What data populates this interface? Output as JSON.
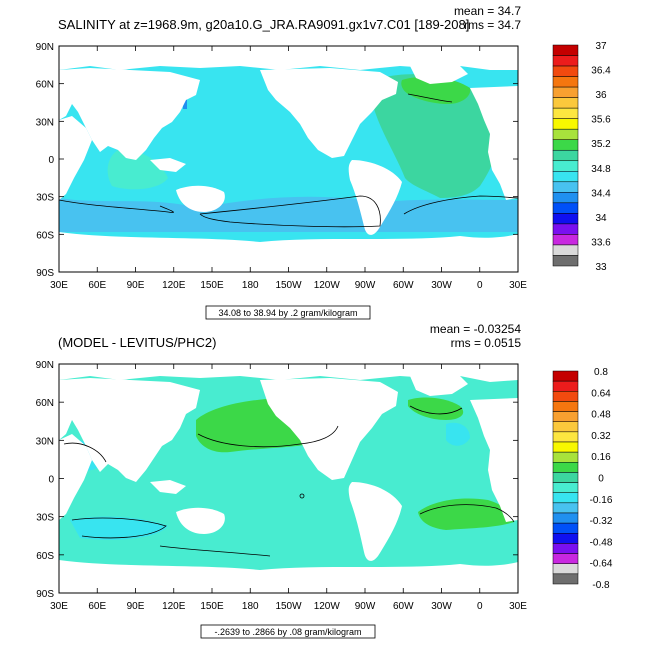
{
  "chart_data": [
    {
      "type": "heatmap",
      "title": "SALINITY at z=1968.9m, g20a10.G_JRA.RA9091.gx1v7.C01 [189-208]",
      "stats": {
        "mean": "mean = 34.7",
        "rms": "rms = 34.7"
      },
      "x_ticks": [
        "30E",
        "60E",
        "90E",
        "120E",
        "150E",
        "180",
        "150W",
        "120W",
        "90W",
        "60W",
        "30W",
        "0",
        "30E"
      ],
      "y_ticks": [
        "90N",
        "60N",
        "30N",
        "0",
        "30S",
        "60S",
        "90S"
      ],
      "xlim": [
        30,
        390
      ],
      "ylim": [
        -90,
        90
      ],
      "range_label": "34.08 to 38.94 by .2 gram/kilogram",
      "colorbar": {
        "labels": [
          "37",
          "36.4",
          "36",
          "35.6",
          "35.2",
          "34.8",
          "34.4",
          "34",
          "33.6",
          "33"
        ],
        "colors": [
          "#c40000",
          "#ec1c1c",
          "#f24a0f",
          "#f5760f",
          "#f8a030",
          "#fbc83c",
          "#fde640",
          "#f8f800",
          "#a8e23c",
          "#3cd848",
          "#3cd6a0",
          "#48ecd0",
          "#38e4f0",
          "#48c2f0",
          "#2090f0",
          "#0050f8",
          "#1010f0",
          "#7a10f0",
          "#c828e0",
          "#dadada",
          "#6e6e6e"
        ]
      }
    },
    {
      "type": "heatmap",
      "title": "(MODEL - LEVITUS/PHC2)",
      "stats": {
        "mean": "mean = -0.03254",
        "rms": "rms = 0.0515"
      },
      "x_ticks": [
        "30E",
        "60E",
        "90E",
        "120E",
        "150E",
        "180",
        "150W",
        "120W",
        "90W",
        "60W",
        "30W",
        "0",
        "30E"
      ],
      "y_ticks": [
        "90N",
        "60N",
        "30N",
        "0",
        "30S",
        "60S",
        "90S"
      ],
      "xlim": [
        30,
        390
      ],
      "ylim": [
        -90,
        90
      ],
      "range_label": "-.2639 to .2866 by .08 gram/kilogram",
      "colorbar": {
        "labels": [
          "0.8",
          "0.64",
          "0.48",
          "0.32",
          "0.16",
          "0",
          "-0.16",
          "-0.32",
          "-0.48",
          "-0.64",
          "-0.8"
        ],
        "colors": [
          "#c40000",
          "#ec1c1c",
          "#f24a0f",
          "#f5760f",
          "#f8a030",
          "#fbc83c",
          "#fde640",
          "#f8f800",
          "#a8e23c",
          "#3cd848",
          "#3cd6a0",
          "#48ecd0",
          "#38e4f0",
          "#48c2f0",
          "#2090f0",
          "#0050f8",
          "#1010f0",
          "#7a10f0",
          "#c828e0",
          "#dadada",
          "#6e6e6e"
        ]
      }
    }
  ]
}
